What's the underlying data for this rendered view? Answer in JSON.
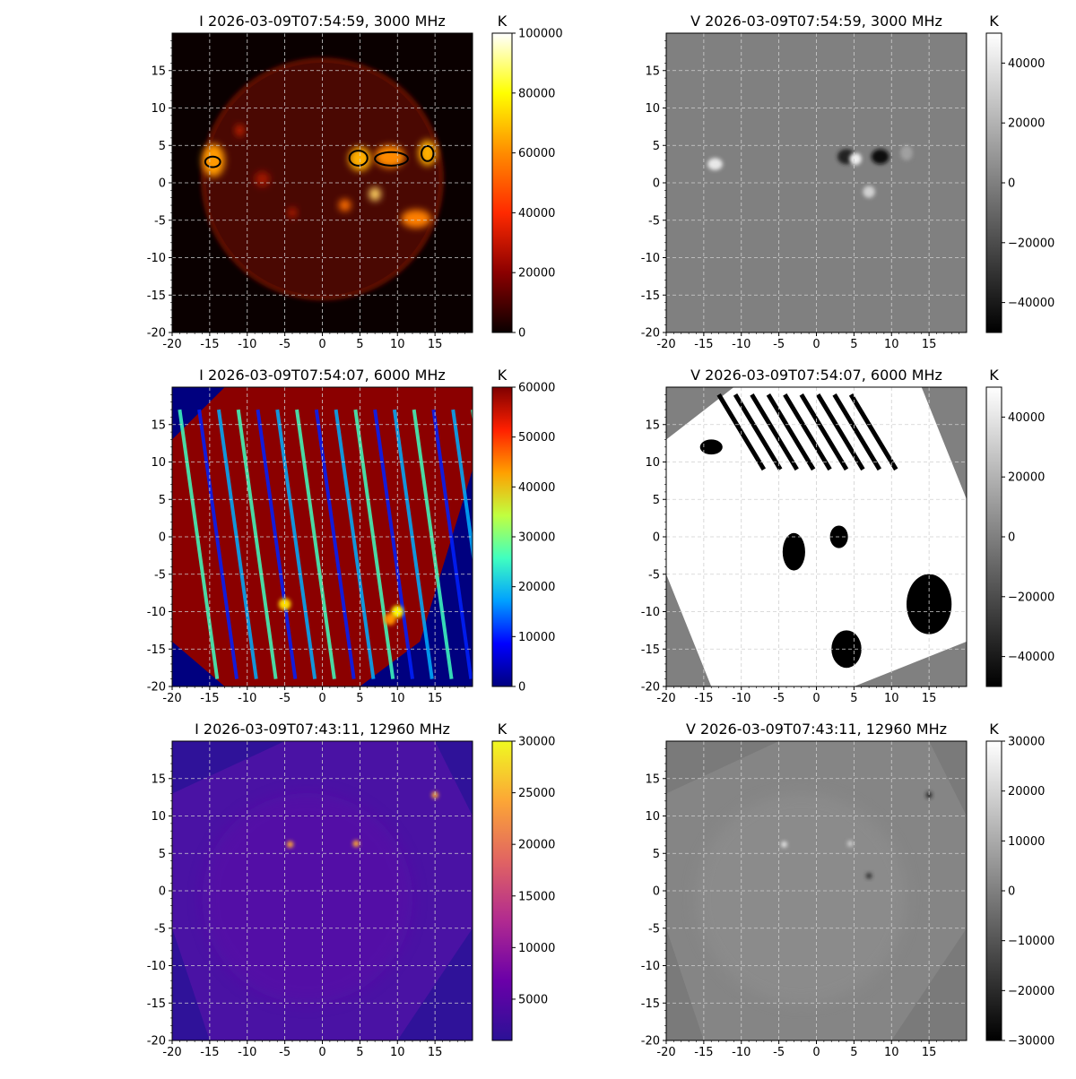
{
  "figure": {
    "panels": [
      {
        "title": "I 2026-03-09T07:54:59, 3000 MHz",
        "cmap": "hot",
        "unit": "K",
        "cbar_ticks": [
          "0",
          "20000",
          "40000",
          "60000",
          "80000",
          "100000"
        ],
        "cbar_range": [
          0,
          100000
        ],
        "image": "solar-disk-hot"
      },
      {
        "title": "V 2026-03-09T07:54:59, 3000 MHz",
        "cmap": "gray",
        "unit": "K",
        "cbar_ticks": [
          "−40000",
          "−20000",
          "0",
          "20000",
          "40000"
        ],
        "cbar_range": [
          -50000,
          50000
        ],
        "image": "gray-flat"
      },
      {
        "title": "I 2026-03-09T07:54:07, 6000 MHz",
        "cmap": "jet",
        "unit": "K",
        "cbar_ticks": [
          "0",
          "10000",
          "20000",
          "30000",
          "40000",
          "50000",
          "60000"
        ],
        "cbar_range": [
          0,
          60000
        ],
        "image": "jet-streaks"
      },
      {
        "title": "V 2026-03-09T07:54:07, 6000 MHz",
        "cmap": "gray",
        "unit": "K",
        "cbar_ticks": [
          "−40000",
          "−20000",
          "0",
          "20000",
          "40000"
        ],
        "cbar_range": [
          -50000,
          50000
        ],
        "image": "gray-saturated"
      },
      {
        "title": "I 2026-03-09T07:43:11, 12960 MHz",
        "cmap": "plasma",
        "unit": "K",
        "cbar_ticks": [
          "5000",
          "10000",
          "15000",
          "20000",
          "25000",
          "30000"
        ],
        "cbar_range": [
          1000,
          30000
        ],
        "image": "plasma-faint"
      },
      {
        "title": "V 2026-03-09T07:43:11, 12960 MHz",
        "cmap": "gray",
        "unit": "K",
        "cbar_ticks": [
          "−30000",
          "−20000",
          "−10000",
          "0",
          "10000",
          "20000",
          "30000"
        ],
        "cbar_range": [
          -30000,
          30000
        ],
        "image": "gray-faint"
      }
    ]
  },
  "chart_data": [
    {
      "type": "heatmap",
      "title": "I 2026-03-09T07:54:59, 3000 MHz",
      "colorbar_label": "K",
      "colormap": "hot",
      "clim": [
        0,
        100000
      ],
      "xlim": [
        -20,
        20
      ],
      "ylim": [
        -20,
        20
      ],
      "xticks": [
        "-20",
        "-15",
        "-10",
        "-5",
        "0",
        "5",
        "10",
        "15"
      ],
      "yticks": [
        "-20",
        "-15",
        "-10",
        "-5",
        "0",
        "5",
        "10",
        "15"
      ],
      "grid": true,
      "contours": true
    },
    {
      "type": "heatmap",
      "title": "V 2026-03-09T07:54:59, 3000 MHz",
      "colorbar_label": "K",
      "colormap": "gray",
      "clim": [
        -50000,
        50000
      ],
      "xlim": [
        -20,
        20
      ],
      "ylim": [
        -20,
        20
      ],
      "xticks": [
        "-20",
        "-15",
        "-10",
        "-5",
        "0",
        "5",
        "10",
        "15"
      ],
      "yticks": [
        "-20",
        "-15",
        "-10",
        "-5",
        "0",
        "5",
        "10",
        "15"
      ],
      "grid": true
    },
    {
      "type": "heatmap",
      "title": "I 2026-03-09T07:54:07, 6000 MHz",
      "colorbar_label": "K",
      "colormap": "jet",
      "clim": [
        0,
        60000
      ],
      "xlim": [
        -20,
        20
      ],
      "ylim": [
        -20,
        20
      ],
      "xticks": [
        "-20",
        "-15",
        "-10",
        "-5",
        "0",
        "5",
        "10",
        "15"
      ],
      "yticks": [
        "-20",
        "-15",
        "-10",
        "-5",
        "0",
        "5",
        "10",
        "15"
      ],
      "grid": true
    },
    {
      "type": "heatmap",
      "title": "V 2026-03-09T07:54:07, 6000 MHz",
      "colorbar_label": "K",
      "colormap": "gray",
      "clim": [
        -50000,
        50000
      ],
      "xlim": [
        -20,
        20
      ],
      "ylim": [
        -20,
        20
      ],
      "xticks": [
        "-20",
        "-15",
        "-10",
        "-5",
        "0",
        "5",
        "10",
        "15"
      ],
      "yticks": [
        "-20",
        "-15",
        "-10",
        "-5",
        "0",
        "5",
        "10",
        "15"
      ],
      "grid": true
    },
    {
      "type": "heatmap",
      "title": "I 2026-03-09T07:43:11, 12960 MHz",
      "colorbar_label": "K",
      "colormap": "plasma",
      "clim": [
        1000,
        30000
      ],
      "xlim": [
        -20,
        20
      ],
      "ylim": [
        -20,
        20
      ],
      "xticks": [
        "-20",
        "-15",
        "-10",
        "-5",
        "0",
        "5",
        "10",
        "15"
      ],
      "yticks": [
        "-20",
        "-15",
        "-10",
        "-5",
        "0",
        "5",
        "10",
        "15"
      ],
      "grid": true
    },
    {
      "type": "heatmap",
      "title": "V 2026-03-09T07:43:11, 12960 MHz",
      "colorbar_label": "K",
      "colormap": "gray",
      "clim": [
        -30000,
        30000
      ],
      "xlim": [
        -20,
        20
      ],
      "ylim": [
        -20,
        20
      ],
      "xticks": [
        "-20",
        "-15",
        "-10",
        "-5",
        "0",
        "5",
        "10",
        "15"
      ],
      "yticks": [
        "-20",
        "-15",
        "-10",
        "-5",
        "0",
        "5",
        "10",
        "15"
      ],
      "grid": true
    }
  ]
}
